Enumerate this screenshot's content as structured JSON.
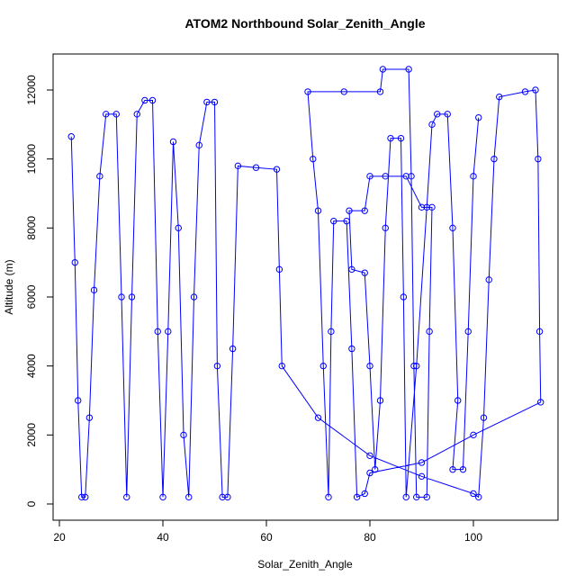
{
  "chart_data": {
    "type": "line",
    "title": "ATOM2 Northbound Solar_Zenith_Angle",
    "x_label": "Solar_Zenith_Angle",
    "y_label": "Altitude (m)",
    "x": [
      22.3,
      23,
      23.6,
      24.3,
      25,
      25.8,
      26.7,
      27.8,
      29,
      31,
      32,
      33,
      34,
      35,
      36.5,
      38,
      39,
      40,
      41,
      42,
      43,
      44,
      45,
      46,
      47,
      48.5,
      50,
      50.5,
      51.5,
      52.5,
      53.5,
      54.5,
      58,
      62,
      62.5,
      63,
      70,
      80,
      90,
      100,
      101,
      102,
      103,
      104,
      105,
      110,
      112,
      112.5,
      112.8,
      113,
      100,
      90,
      80,
      79,
      77.5,
      76.5,
      75.5,
      73,
      72.5,
      72,
      71,
      70,
      69,
      68,
      75,
      82,
      82.5,
      87.5,
      88,
      88.5,
      89,
      91,
      91.5,
      92,
      90,
      87,
      83,
      80,
      79,
      76,
      76.5,
      79,
      80,
      81,
      82,
      83,
      84,
      86,
      86.5,
      87,
      89,
      91,
      92,
      93,
      95,
      96,
      97,
      96,
      98,
      99,
      100,
      101
    ],
    "series": [
      {
        "color": "#0000ff",
        "values": [
          10650,
          7000,
          3000,
          200,
          200,
          2500,
          6200,
          9500,
          11300,
          11300,
          6000,
          200,
          6000,
          11300,
          11700,
          11700,
          5000,
          200,
          5000,
          10500,
          8000,
          2000,
          200,
          6000,
          10400,
          11650,
          11650,
          4000,
          200,
          200,
          4500,
          9800,
          9750,
          9700,
          6800,
          4000,
          2500,
          1400,
          800,
          300,
          200,
          2500,
          6500,
          10000,
          11800,
          11950,
          12000,
          10000,
          5000,
          2950,
          2000,
          1200,
          900,
          300,
          200,
          4500,
          8200,
          8200,
          5000,
          200,
          4000,
          8500,
          10000,
          11950,
          11950,
          11950,
          12600,
          12600,
          9500,
          4000,
          200,
          200,
          5000,
          8600,
          8600,
          9500,
          9500,
          9500,
          8500,
          8500,
          6800,
          6700,
          4000,
          1000,
          3000,
          8000,
          10600,
          10600,
          6000,
          200,
          4000,
          8600,
          11000,
          11300,
          11300,
          8000,
          3000,
          1000,
          1000,
          5000,
          9500,
          11200
        ]
      }
    ],
    "xlim": [
      18.78,
      116.35
    ],
    "ylim": [
      -470,
      13043
    ],
    "xticks": [
      20,
      40,
      60,
      80,
      100
    ],
    "yticks": [
      0,
      2000,
      4000,
      6000,
      8000,
      10000,
      12000
    ]
  }
}
